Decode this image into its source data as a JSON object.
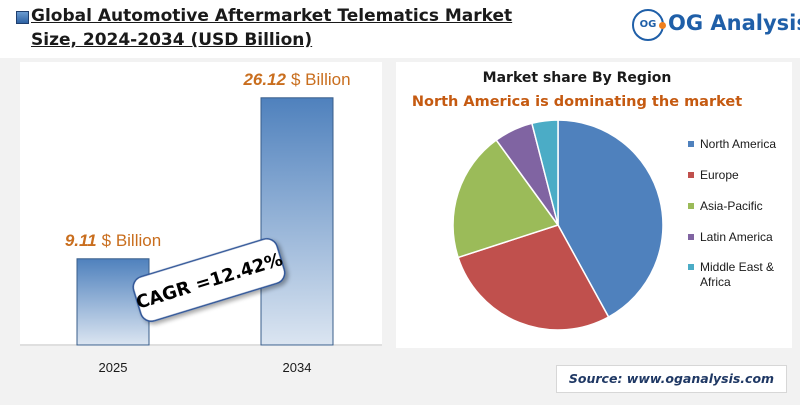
{
  "header": {
    "title_line1": "Global Automotive Aftermarket Telematics Market",
    "title_line2": "Size, 2024-2034 (USD Billion)",
    "logo_mark": "OG",
    "logo_text": "OG Analysis",
    "logo_icon": "og-circle-icon"
  },
  "colors": {
    "bar_top": "#4f81bd",
    "bar_bottom": "#dbe5f1",
    "value_number": "#c96e1e",
    "value_unit": "#c96e1e",
    "subtitle": "#c55a11",
    "source": "#1f3864"
  },
  "source": "Source: www.oganalysis.com",
  "chart_data": [
    {
      "type": "bar",
      "categories": [
        "2025",
        "2034"
      ],
      "values": [
        9.11,
        26.12
      ],
      "value_labels": [
        "9.11",
        "26.12"
      ],
      "value_unit": "$ Billion",
      "annotation": "CAGR =12.42%",
      "ylim": [
        0,
        28
      ]
    },
    {
      "type": "pie",
      "title": "Market share By Region",
      "subtitle": "North America is dominating the market",
      "legend_position": "right",
      "labels": [
        "North America",
        "Europe",
        "Asia-Pacific",
        "Latin America",
        "Middle East & Africa"
      ],
      "values": [
        42,
        28,
        20,
        6,
        4
      ],
      "colors": [
        "#4f81bd",
        "#c0504d",
        "#9bbb59",
        "#8064a2",
        "#4bacc6"
      ]
    }
  ]
}
